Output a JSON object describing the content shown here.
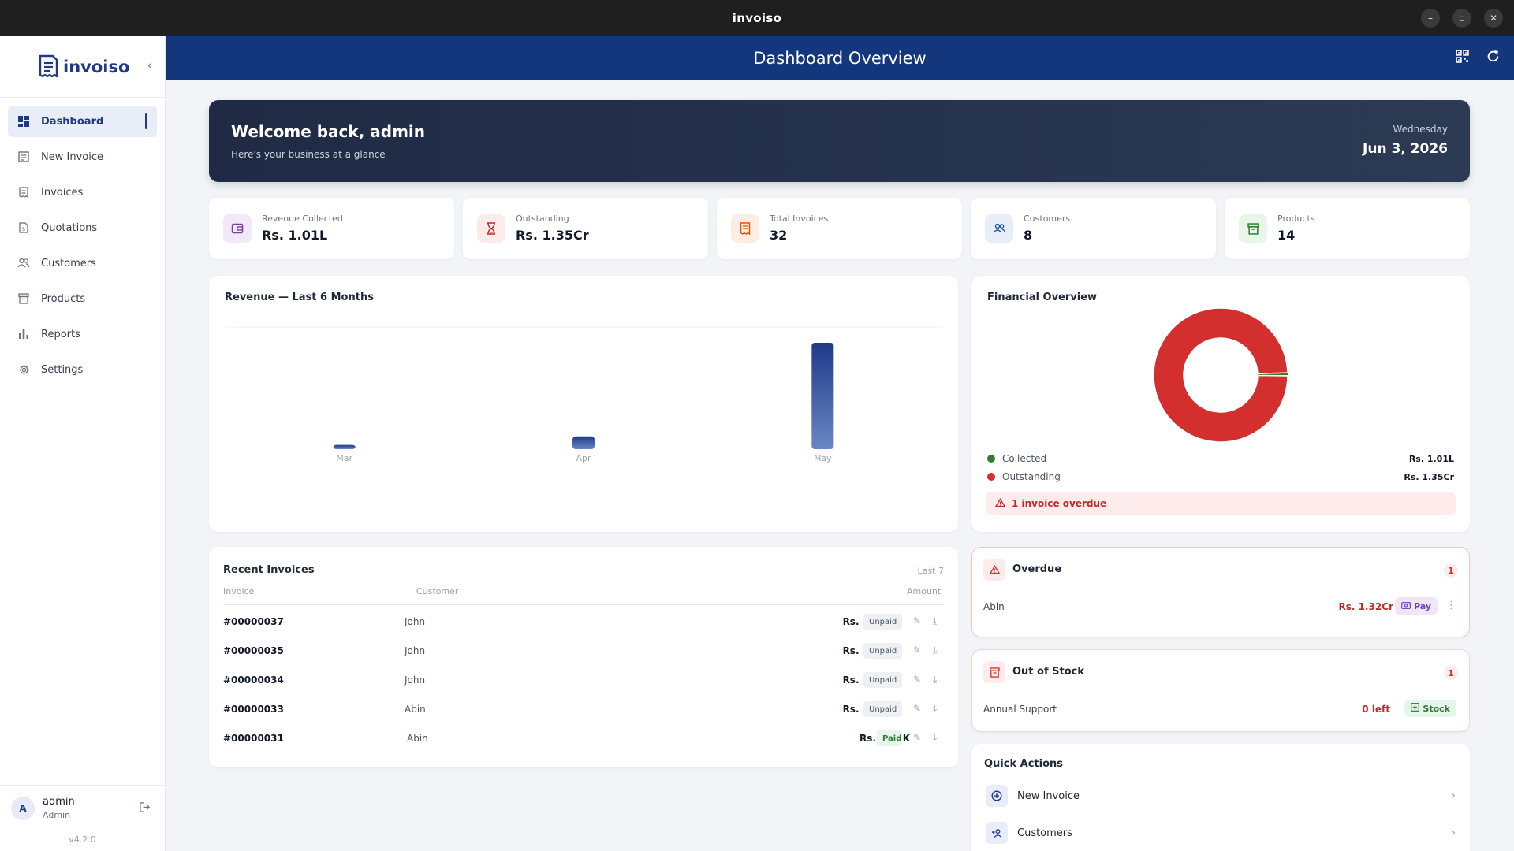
{
  "window": {
    "title": "invoiso"
  },
  "brand": {
    "name": "invoiso"
  },
  "sidebar": {
    "items": [
      {
        "label": "Dashboard",
        "icon": "grid-icon"
      },
      {
        "label": "New Invoice",
        "icon": "receipt-icon"
      },
      {
        "label": "Invoices",
        "icon": "document-icon"
      },
      {
        "label": "Quotations",
        "icon": "file-icon"
      },
      {
        "label": "Customers",
        "icon": "people-icon"
      },
      {
        "label": "Products",
        "icon": "box-icon"
      },
      {
        "label": "Reports",
        "icon": "bar-chart-icon"
      },
      {
        "label": "Settings",
        "icon": "gear-icon"
      }
    ],
    "user": {
      "initial": "A",
      "name": "admin",
      "role": "Admin"
    },
    "version": "v4.2.0"
  },
  "header": {
    "title": "Dashboard Overview"
  },
  "welcome": {
    "heading": "Welcome back, admin",
    "subtitle": "Here's your business at a glance",
    "weekday": "Wednesday",
    "date": "Jun 3, 2026"
  },
  "stats": [
    {
      "label": "Revenue Collected",
      "value": "Rs. 1.01L",
      "color": "#7b3fa0",
      "bg": "#f3e8f7"
    },
    {
      "label": "Outstanding",
      "value": "Rs. 1.35Cr",
      "color": "#c62828",
      "bg": "#fdeaea"
    },
    {
      "label": "Total Invoices",
      "value": "32",
      "color": "#e65100",
      "bg": "#fdeee4"
    },
    {
      "label": "Customers",
      "value": "8",
      "color": "#1e50a0",
      "bg": "#e8eef8"
    },
    {
      "label": "Products",
      "value": "14",
      "color": "#2e7d32",
      "bg": "#e8f5e9"
    }
  ],
  "revenue_chart": {
    "title": "Revenue — Last 6 Months"
  },
  "chart_data": [
    {
      "type": "bar",
      "title": "Revenue — Last 6 Months",
      "categories": [
        "Mar",
        "Apr",
        "May"
      ],
      "values": [
        4,
        12,
        100
      ],
      "ylim": [
        0,
        115
      ],
      "grid": true,
      "color": "#1e3a8a"
    },
    {
      "type": "pie",
      "title": "Financial Overview",
      "labels": [
        "Collected",
        "Outstanding"
      ],
      "values": [
        0.74,
        99.26
      ],
      "display_values": [
        "Rs. 1.01L",
        "Rs. 1.35Cr"
      ],
      "colors": [
        "#2e7d32",
        "#d32f2f"
      ]
    }
  ],
  "financial": {
    "title": "Financial Overview",
    "legend": [
      {
        "label": "Collected",
        "value": "Rs. 1.01L",
        "color": "#2e7d32"
      },
      {
        "label": "Outstanding",
        "value": "Rs. 1.35Cr",
        "color": "#d32f2f"
      }
    ],
    "overdue_note": "1 invoice overdue"
  },
  "recent_invoices": {
    "title": "Recent Invoices",
    "filter": "Last 7",
    "columns": {
      "invoice": "Invoice",
      "customer": "Customer",
      "amount": "Amount"
    },
    "rows": [
      {
        "invoice": "#00000037",
        "customer": "John",
        "amount": "Rs. 401.20",
        "status": "Unpaid"
      },
      {
        "invoice": "#00000035",
        "customer": "John",
        "amount": "Rs. 401.20",
        "status": "Unpaid"
      },
      {
        "invoice": "#00000034",
        "customer": "John",
        "amount": "Rs. 401.20",
        "status": "Unpaid"
      },
      {
        "invoice": "#00000033",
        "customer": "Abin",
        "amount": "Rs. 401.20",
        "status": "Unpaid"
      },
      {
        "invoice": "#00000031",
        "customer": "Abin",
        "amount": "Rs. 57.8K",
        "status": "Paid"
      }
    ]
  },
  "overdue": {
    "title": "Overdue",
    "count": "1",
    "customer": "Abin",
    "amount": "Rs. 1.32Cr",
    "action": "Pay"
  },
  "out_of_stock": {
    "title": "Out of Stock",
    "count": "1",
    "product": "Annual Support",
    "left": "0 left",
    "action": "Stock"
  },
  "quick_actions": {
    "title": "Quick Actions",
    "items": [
      {
        "label": "New Invoice",
        "icon": "plus-circle-icon"
      },
      {
        "label": "Customers",
        "icon": "add-person-icon"
      }
    ]
  }
}
